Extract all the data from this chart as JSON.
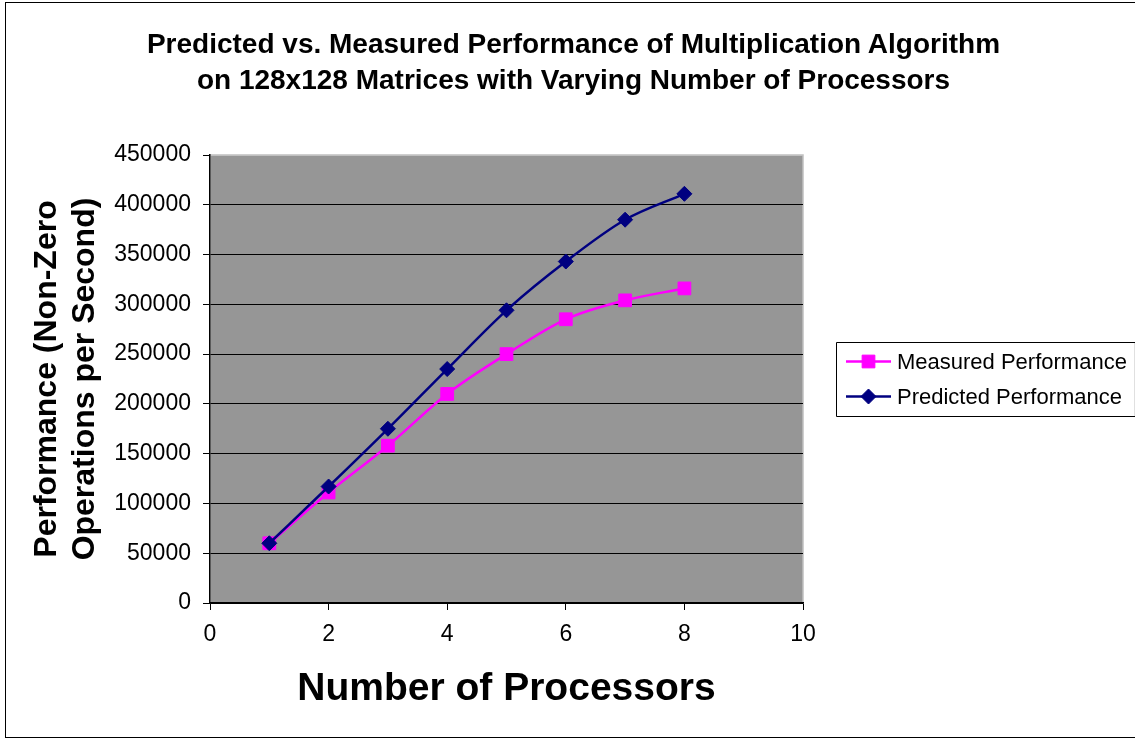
{
  "chart_data": {
    "type": "line",
    "title": "Predicted vs. Measured Performance of Multiplication Algorithm\non 128x128 Matrices with Varying Number of Processors",
    "xlabel": "Number of Processors",
    "ylabel": "Performance (Non-Zero\nOperations per Second)",
    "x": [
      1,
      2,
      3,
      4,
      5,
      6,
      7,
      8
    ],
    "series": [
      {
        "name": "Measured Performance",
        "color": "#ff00ff",
        "marker": "square",
        "values": [
          60000,
          111000,
          158000,
          210000,
          250000,
          285000,
          304000,
          316000
        ]
      },
      {
        "name": "Predicted Performance",
        "color": "#000080",
        "marker": "diamond",
        "values": [
          60000,
          117000,
          175000,
          235000,
          294000,
          343000,
          385000,
          411000
        ]
      }
    ],
    "xlim": [
      0,
      10
    ],
    "xticks": [
      0,
      2,
      4,
      6,
      8,
      10
    ],
    "ylim": [
      0,
      450000
    ],
    "yticks": [
      0,
      50000,
      100000,
      150000,
      200000,
      250000,
      300000,
      350000,
      400000,
      450000
    ],
    "grid": "y",
    "legend": "right",
    "line_style": "solid"
  }
}
